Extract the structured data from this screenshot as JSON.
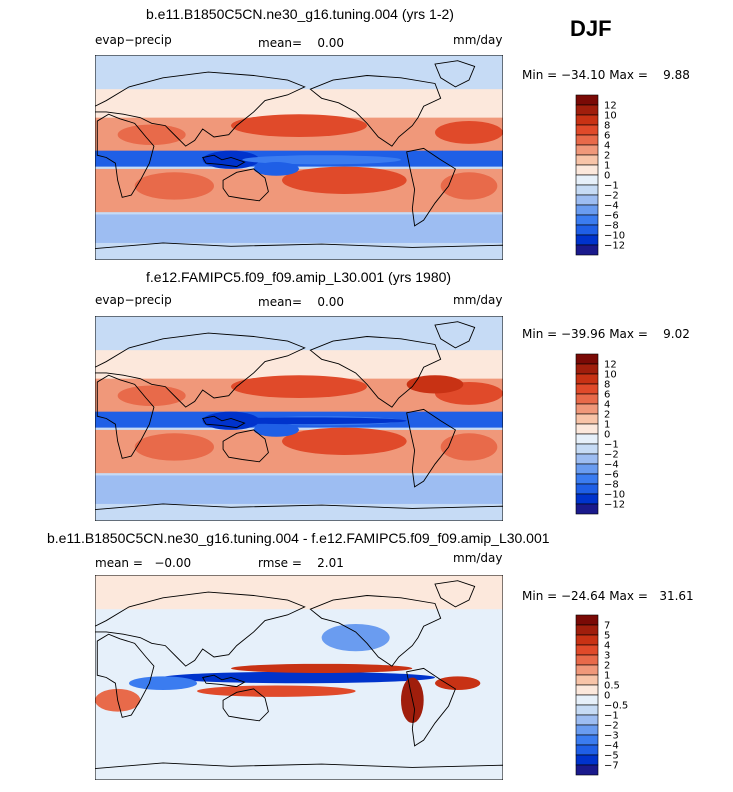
{
  "season": "DJF",
  "colors": {
    "panel_scale": [
      "#1a1a8c",
      "#0033cc",
      "#1f5fe6",
      "#3b7cf0",
      "#6a9cf0",
      "#9dbdf2",
      "#c6dbf5",
      "#e6f0fa",
      "#fce8dc",
      "#f8c4a8",
      "#f0987a",
      "#e86a4a",
      "#e04a2a",
      "#c83214",
      "#a01e0c",
      "#7a0a06"
    ],
    "land": "#ffffff",
    "coast": "#000000"
  },
  "panels": [
    {
      "title": "b.e11.B1850C5CN.ne30_g16.tuning.004 (yrs 1-2)",
      "left_label": "evap−precip",
      "center_label": "mean=    0.00",
      "right_label": "mm/day",
      "minmax": "Min = −34.10 Max =    9.88"
    },
    {
      "title": "f.e12.FAMIPC5.f09_f09.amip_L30.001 (yrs 1980)",
      "left_label": "evap−precip",
      "center_label": "mean=    0.00",
      "right_label": "mm/day",
      "minmax": "Min = −39.96 Max =    9.02"
    },
    {
      "title": "b.e11.B1850C5CN.ne30_g16.tuning.004 - f.e12.FAMIPC5.f09_f09.amip_L30.001",
      "left_label": "mean =   −0.00",
      "center_label": "rmse =    2.01",
      "right_label": "mm/day",
      "minmax": "Min = −24.64 Max =   31.61"
    }
  ],
  "colorbars": [
    {
      "labels": [
        "12",
        "10",
        "8",
        "6",
        "4",
        "2",
        "1",
        "0",
        "−1",
        "−2",
        "−4",
        "−6",
        "−8",
        "−10",
        "−12"
      ]
    },
    {
      "labels": [
        "12",
        "10",
        "8",
        "6",
        "4",
        "2",
        "1",
        "0",
        "−1",
        "−2",
        "−4",
        "−6",
        "−8",
        "−10",
        "−12"
      ]
    },
    {
      "labels": [
        "7",
        "5",
        "4",
        "3",
        "2",
        "1",
        "0.5",
        "0",
        "−0.5",
        "−1",
        "−2",
        "−3",
        "−4",
        "−5",
        "−7"
      ]
    }
  ],
  "chart_data": [
    {
      "type": "heatmap",
      "title": "b.e11.B1850C5CN.ne30_g16.tuning.004 (yrs 1-2)",
      "variable": "evap−precip",
      "units": "mm/day",
      "mean": 0.0,
      "min": -34.1,
      "max": 9.88,
      "levels": [
        -12,
        -10,
        -8,
        -6,
        -4,
        -2,
        -1,
        0,
        1,
        2,
        4,
        6,
        8,
        10,
        12
      ]
    },
    {
      "type": "heatmap",
      "title": "f.e12.FAMIPC5.f09_f09.amip_L30.001 (yrs 1980)",
      "variable": "evap−precip",
      "units": "mm/day",
      "mean": 0.0,
      "min": -39.96,
      "max": 9.02,
      "levels": [
        -12,
        -10,
        -8,
        -6,
        -4,
        -2,
        -1,
        0,
        1,
        2,
        4,
        6,
        8,
        10,
        12
      ]
    },
    {
      "type": "heatmap",
      "title": "b.e11.B1850C5CN.ne30_g16.tuning.004 - f.e12.FAMIPC5.f09_f09.amip_L30.001",
      "units": "mm/day",
      "mean": -0.0,
      "rmse": 2.01,
      "min": -24.64,
      "max": 31.61,
      "levels": [
        -7,
        -5,
        -4,
        -3,
        -2,
        -1,
        -0.5,
        0,
        0.5,
        1,
        2,
        3,
        4,
        5,
        7
      ]
    }
  ]
}
